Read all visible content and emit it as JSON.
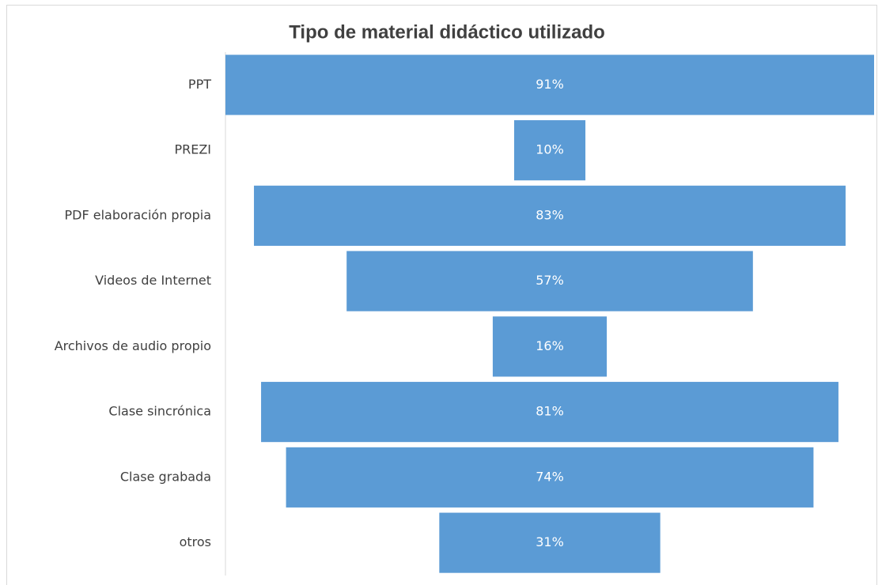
{
  "chart_data": {
    "type": "funnel",
    "title": "Tipo de material didáctico utilizado",
    "categories": [
      "PPT",
      "PREZI",
      "PDF elaboración propia",
      "Videos de Internet",
      "Archivos de audio propio",
      "Clase sincrónica",
      "Clase grabada",
      "otros"
    ],
    "values": [
      91,
      10,
      83,
      57,
      16,
      81,
      74,
      31
    ],
    "value_labels": [
      "91%",
      "10%",
      "83%",
      "57%",
      "16%",
      "81%",
      "74%",
      "31%"
    ],
    "color": "#5b9bd5"
  }
}
